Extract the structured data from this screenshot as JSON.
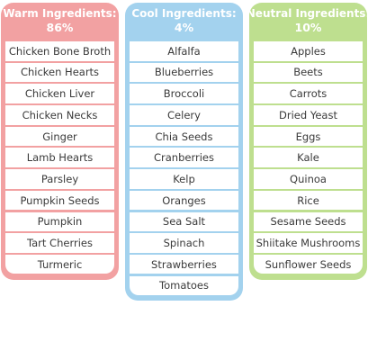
{
  "columns": [
    {
      "title": "Warm Ingredients:",
      "percent": "86%",
      "color": "#f2a1a2",
      "items": [
        "Chicken Bone Broth",
        "Chicken Hearts",
        "Chicken Liver",
        "Chicken Necks",
        "Ginger",
        "Lamb Hearts",
        "Parsley",
        "Pumpkin Seeds",
        "Pumpkin",
        "Tart Cherries",
        "Turmeric"
      ]
    },
    {
      "title": "Cool Ingredients:",
      "percent": "4%",
      "color": "#a3d2ee",
      "items": [
        "Alfalfa",
        "Blueberries",
        "Broccoli",
        "Celery",
        "Chia Seeds",
        "Cranberries",
        "Kelp",
        "Oranges",
        "Sea Salt",
        "Spinach",
        "Strawberries",
        "Tomatoes"
      ]
    },
    {
      "title": "Neutral Ingredients:",
      "percent": "10%",
      "color": "#bedf8f",
      "items": [
        "Apples",
        "Beets",
        "Carrots",
        "Dried Yeast",
        "Eggs",
        "Kale",
        "Quinoa",
        "Rice",
        "Sesame Seeds",
        "Shiitake Mushrooms",
        "Sunflower Seeds"
      ]
    }
  ]
}
